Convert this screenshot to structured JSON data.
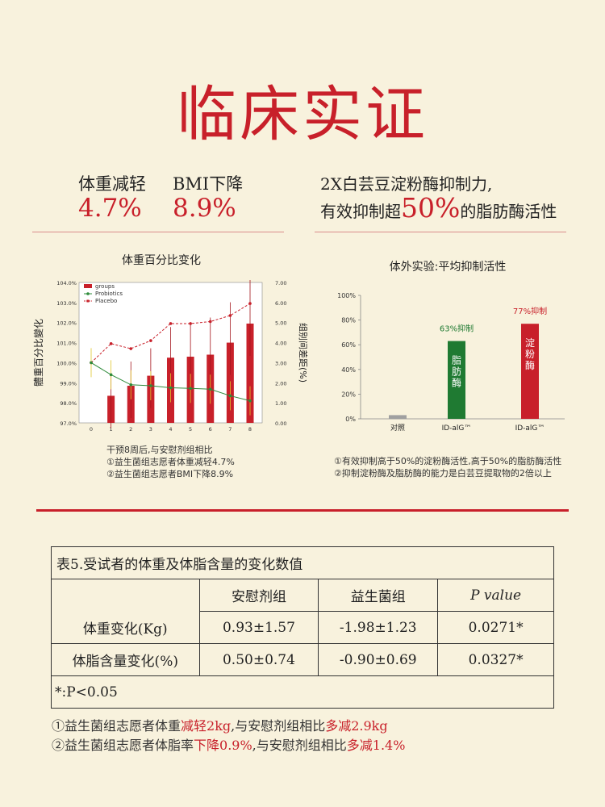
{
  "title": "临床实证",
  "stats": [
    {
      "label": "体重减轻",
      "value": "4.7%"
    },
    {
      "label": "BMI下降",
      "value": "8.9%"
    }
  ],
  "right_head": {
    "line1": "2X白芸豆淀粉酶抑制力,",
    "line2_a": "有效抑制超",
    "line2_b": "50%",
    "line2_c": "的脂肪酶活性"
  },
  "chart_data": [
    {
      "type": "bar",
      "title": "体重百分比变化",
      "ylabel": "體重百分比變化",
      "y2label": "组别间差距(%)",
      "x": [
        0,
        1,
        2,
        3,
        4,
        5,
        6,
        7,
        8
      ],
      "xticks": [
        "0",
        "1",
        "2",
        "3",
        "4",
        "5",
        "6",
        "7",
        "8"
      ],
      "ylim": [
        97.0,
        104.0
      ],
      "yticks": [
        "97.0%",
        "98.0%",
        "99.0%",
        "100.0%",
        "101.0%",
        "102.0%",
        "103.0%",
        "104.0%"
      ],
      "y2lim": [
        0,
        7
      ],
      "y2ticks": [
        "0.00",
        "1.00",
        "2.00",
        "3.00",
        "4.00",
        "5.00",
        "6.00",
        "7.00"
      ],
      "legend": [
        "groups",
        "Probiotics",
        "Placebo"
      ],
      "legend_position": "top-left",
      "series": [
        {
          "name": "groups",
          "kind": "bar",
          "axis": "right",
          "color": "#c8202a",
          "values": [
            null,
            1.35,
            1.85,
            2.35,
            3.25,
            3.3,
            3.4,
            4.0,
            4.95
          ]
        },
        {
          "name": "Probiotics",
          "kind": "line",
          "axis": "left",
          "color": "#2e8b3a",
          "values": [
            100.0,
            99.4,
            98.9,
            98.85,
            98.75,
            98.72,
            98.68,
            98.35,
            98.1
          ]
        },
        {
          "name": "Placebo",
          "kind": "line",
          "axis": "left",
          "color": "#c8202a",
          "dashed": true,
          "values": [
            100.0,
            100.95,
            100.7,
            101.1,
            101.95,
            101.95,
            102.05,
            102.35,
            102.95
          ]
        }
      ],
      "notes": [
        "干预8周后,与安慰剂组相比",
        "①益生菌组志愿者体重减轻4.7%",
        "②益生菌组志愿者BMI下降8.9%"
      ]
    },
    {
      "type": "bar",
      "title": "体外实验:平均抑制活性",
      "categories": [
        "对照",
        "ID-alG™",
        "ID-alG™"
      ],
      "values": [
        3,
        63,
        77
      ],
      "colors": [
        "#a0a0a0",
        "#1f7a32",
        "#c8202a"
      ],
      "ylim": [
        0,
        100
      ],
      "yticks": [
        "0%",
        "20%",
        "40%",
        "60%",
        "80%",
        "100%"
      ],
      "bar_text": [
        "",
        "脂肪酶",
        "淀粉酶"
      ],
      "data_labels": [
        "",
        "63%抑制",
        "77%抑制"
      ],
      "notes": [
        "①有效抑制高于50%的淀粉酶活性,高于50%的脂肪酶活性",
        "②抑制淀粉酶及脂肪酶的能力是白芸豆提取物的2倍以上"
      ]
    }
  ],
  "table": {
    "caption": "表5.受试者的体重及体脂含量的变化数值",
    "headers": [
      "安慰剂组",
      "益生菌组",
      "P value"
    ],
    "rows": [
      {
        "label": "体重变化(Kg)",
        "cells": [
          "0.93±1.57",
          "-1.98±1.23",
          "0.0271*"
        ]
      },
      {
        "label": "体脂含量变化(%)",
        "cells": [
          "0.50±0.74",
          "-0.90±0.69",
          "0.0327*"
        ]
      }
    ],
    "footnote": "*:P<0.05"
  },
  "footnotes": [
    {
      "a": "①益生菌组志愿者体重",
      "b": "减轻2kg",
      "c": ",与安慰剂组相比",
      "d": "多减2.9kg"
    },
    {
      "a": "②益生菌组志愿者体脂率",
      "b": "下降0.9%",
      "c": ",与安慰剂组相比",
      "d": "多减1.4%"
    }
  ]
}
